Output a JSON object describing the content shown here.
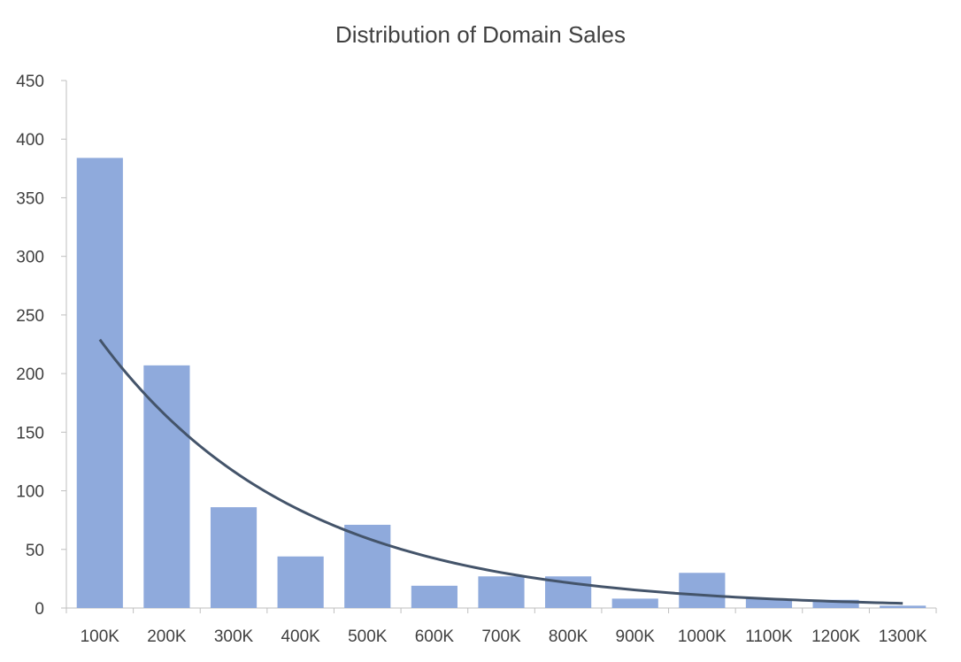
{
  "chart_data": {
    "type": "bar",
    "title": "Distribution of Domain Sales",
    "xlabel": "",
    "ylabel": "",
    "categories": [
      "100K",
      "200K",
      "300K",
      "400K",
      "500K",
      "600K",
      "700K",
      "800K",
      "900K",
      "1000K",
      "1100K",
      "1200K",
      "1300K"
    ],
    "values": [
      384,
      207,
      86,
      44,
      71,
      19,
      27,
      27,
      8,
      30,
      8,
      7,
      2
    ],
    "ylim": [
      0,
      450
    ],
    "yticks": [
      0,
      50,
      100,
      150,
      200,
      250,
      300,
      350,
      400,
      450
    ],
    "trendline": {
      "type": "exponential",
      "x": [
        "100K",
        "200K",
        "300K",
        "400K",
        "500K",
        "600K",
        "700K",
        "800K",
        "900K",
        "1000K",
        "1100K",
        "1200K",
        "1300K"
      ],
      "values": [
        229,
        161,
        112,
        78,
        54,
        38,
        27,
        19,
        14,
        10,
        7,
        5,
        4
      ]
    },
    "grid": false,
    "legend": "none",
    "colors": {
      "bar": "#8faadc",
      "trendline": "#44546a",
      "axis": "#bfbfbf",
      "text": "#404040"
    }
  }
}
